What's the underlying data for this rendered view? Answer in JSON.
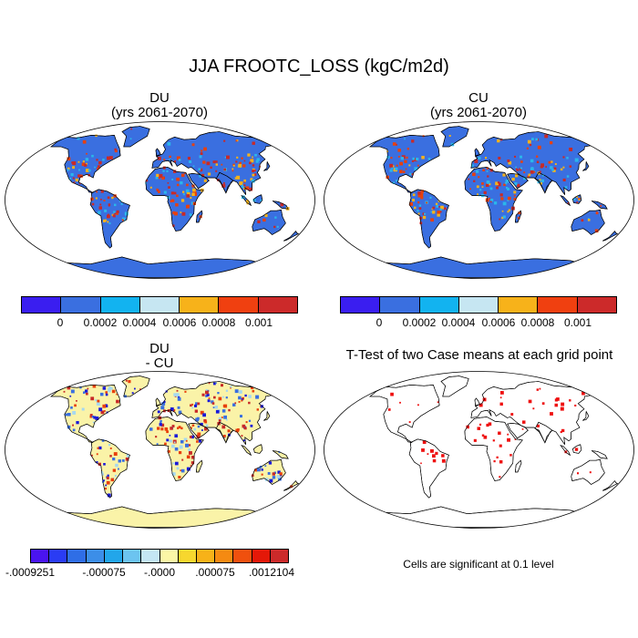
{
  "figure": {
    "title": "JJA FROOTC_LOSS (kgC/m2d)"
  },
  "panels": [
    {
      "id": "du",
      "title_line1": "DU",
      "title_line2": "(yrs 2061-2070)",
      "ocean_color": "#ffffff",
      "land_base_color": "#3a6fe0",
      "hotspot_colors": [
        "#e8400c",
        "#c82a28",
        "#f6b21a",
        "#2bb6ea"
      ]
    },
    {
      "id": "cu",
      "title_line1": "CU",
      "title_line2": "(yrs 2061-2070)",
      "ocean_color": "#ffffff",
      "land_base_color": "#3a6fe0",
      "hotspot_colors": [
        "#e8400c",
        "#c82a28",
        "#f6b21a",
        "#2bb6ea"
      ]
    },
    {
      "id": "diff",
      "title_line1": "DU",
      "title_line2": "- CU",
      "ocean_color": "#ffffff",
      "land_base_color": "#faf3a8",
      "hotspot_colors": [
        "#3a6fe0",
        "#1a1ad8",
        "#e8400c",
        "#c82a28",
        "#a6d8f0"
      ]
    },
    {
      "id": "ttest",
      "title_line1": "T-Test of two Case means at each grid point",
      "ocean_color": "#ffffff",
      "land_base_color": "#ffffff",
      "hotspot_colors": [
        "#ee1010"
      ]
    }
  ],
  "colorbars": {
    "top": {
      "colors": [
        "#3a1ef0",
        "#3a6fe0",
        "#12b3f0",
        "#c6e6f2",
        "#f7b21a",
        "#f04010",
        "#cc2a2a"
      ],
      "labels": [
        "0",
        "0.0002",
        "0.0004",
        "0.0006",
        "0.0008",
        "0.001"
      ]
    },
    "diff": {
      "colors": [
        "#4a14f0",
        "#2a3cf4",
        "#2f6ee6",
        "#3c8ee8",
        "#22a6ea",
        "#6cc4f0",
        "#c4e6f4",
        "#fbf6a6",
        "#f7d72e",
        "#f7b218",
        "#f58a12",
        "#f0500e",
        "#e41808",
        "#cc2a2a"
      ],
      "labels": [
        "-.0009251",
        "-.000075",
        "-.0000",
        ".000075",
        ".0012104"
      ]
    }
  },
  "significance_note": "Cells are significant at 0.1 level"
}
